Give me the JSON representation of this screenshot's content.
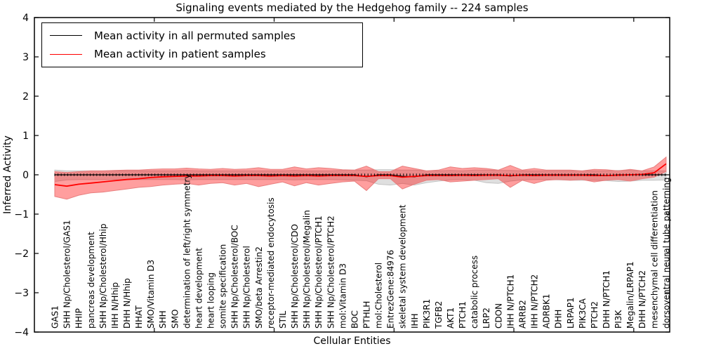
{
  "chart_data": {
    "type": "line",
    "title": "Signaling events mediated by the Hedgehog family -- 224 samples",
    "xlabel": "Cellular Entities",
    "ylabel": "Inferred Activity",
    "ylim": [
      -4,
      4
    ],
    "yticks": [
      -4,
      -3,
      -2,
      -1,
      0,
      1,
      2,
      3,
      4
    ],
    "xticks": [
      10,
      20,
      30,
      40,
      50
    ],
    "grid": false,
    "legend_position": "upper left",
    "categories": [
      "GAS1",
      "SHH Np/Cholesterol/GAS1",
      "HHIP",
      "pancreas development",
      "SHH Np/Cholesterol/Hhip",
      "IHH N/Hhip",
      "DHH N/Hhip",
      "HHAT",
      "SMO/Vitamin D3",
      "SHH",
      "SMO",
      "determination of left/right symmetry",
      "heart development",
      "heart looping",
      "somite specification",
      "SHH Np/Cholesterol/BOC",
      "SHH Np/Cholesterol",
      "SMO/beta Arrestin2",
      "receptor-mediated endocytosis",
      "STIL",
      "SHH Np/Cholesterol/CDO",
      "SHH Np/Cholesterol/Megalin",
      "SHH Np/Cholesterol/PTCH1",
      "SHH Np/Cholesterol/PTCH2",
      "mol:Vitamin D3",
      "BOC",
      "PTHLH",
      "mol:Cholesterol",
      "EntrezGene:84976",
      "skeletal system development",
      "IHH",
      "PIK3R1",
      "TGFB2",
      "AKT1",
      "PTCH1",
      "catabolic process",
      "LRP2",
      "CDON",
      "IHH N/PTCH1",
      "ARRB2",
      "IHH N/PTCH2",
      "ADRBK1",
      "DHH",
      "LRPAP1",
      "PIK3CA",
      "PTCH2",
      "DHH N/PTCH1",
      "PI3K",
      "Megalin/LRPAP1",
      "DHH N/PTCH2",
      "mesenchymal cell differentiation",
      "dorsoventral neural tube patterning"
    ],
    "series": [
      {
        "id": "permuted-mean",
        "name": "Mean activity in all permuted samples",
        "color": "#000000",
        "values": [
          0,
          0,
          0,
          0,
          0,
          0,
          0,
          0,
          0,
          0,
          0,
          0,
          0,
          0,
          0,
          0,
          0,
          0,
          0,
          0,
          0,
          0,
          0,
          0,
          0,
          0,
          -0.05,
          0,
          0,
          -0.04,
          -0.05,
          0,
          0,
          0,
          0,
          0,
          0,
          0,
          -0.03,
          0,
          0,
          0,
          0,
          0,
          0,
          0,
          -0.02,
          0,
          0,
          0,
          0,
          0
        ]
      },
      {
        "id": "patient-mean",
        "name": "Mean activity in patient samples",
        "color": "#ff0000",
        "values": [
          -0.25,
          -0.29,
          -0.24,
          -0.21,
          -0.18,
          -0.15,
          -0.12,
          -0.1,
          -0.07,
          -0.05,
          -0.04,
          -0.03,
          -0.03,
          -0.02,
          -0.02,
          -0.03,
          -0.02,
          -0.02,
          -0.03,
          -0.02,
          -0.03,
          -0.02,
          -0.03,
          -0.02,
          -0.02,
          -0.02,
          -0.04,
          -0.02,
          -0.02,
          -0.06,
          -0.04,
          -0.02,
          -0.02,
          -0.02,
          -0.01,
          -0.02,
          -0.01,
          -0.01,
          -0.02,
          -0.01,
          -0.02,
          -0.01,
          -0.01,
          -0.01,
          -0.01,
          -0.02,
          -0.02,
          -0.01,
          0.0,
          0.01,
          0.05,
          0.28
        ]
      }
    ],
    "bands": [
      {
        "id": "permuted-range",
        "name": "Permuted samples activity spread",
        "color": "#aaaaaa",
        "edge_color": "#c4c4c4",
        "fill_opacity": 0.38,
        "upper": [
          0.12,
          0.1,
          0.1,
          0.1,
          0.1,
          0.1,
          0.1,
          0.1,
          0.1,
          0.1,
          0.1,
          0.11,
          0.1,
          0.1,
          0.1,
          0.1,
          0.1,
          0.1,
          0.1,
          0.1,
          0.11,
          0.1,
          0.1,
          0.1,
          0.11,
          0.12,
          0.12,
          0.13,
          0.13,
          0.12,
          0.12,
          0.1,
          0.1,
          0.11,
          0.1,
          0.12,
          0.12,
          0.11,
          0.11,
          0.1,
          0.1,
          0.1,
          0.1,
          0.1,
          0.1,
          0.1,
          0.1,
          0.11,
          0.11,
          0.1,
          0.1,
          0.1
        ],
        "lower": [
          -0.17,
          -0.13,
          -0.12,
          -0.12,
          -0.12,
          -0.12,
          -0.12,
          -0.12,
          -0.12,
          -0.12,
          -0.12,
          -0.13,
          -0.12,
          -0.12,
          -0.12,
          -0.12,
          -0.12,
          -0.12,
          -0.12,
          -0.12,
          -0.13,
          -0.12,
          -0.12,
          -0.12,
          -0.13,
          -0.14,
          -0.15,
          -0.24,
          -0.26,
          -0.22,
          -0.26,
          -0.2,
          -0.16,
          -0.13,
          -0.12,
          -0.14,
          -0.2,
          -0.22,
          -0.16,
          -0.13,
          -0.12,
          -0.12,
          -0.13,
          -0.14,
          -0.14,
          -0.14,
          -0.15,
          -0.17,
          -0.16,
          -0.14,
          -0.14,
          -0.13
        ]
      },
      {
        "id": "patient-range",
        "name": "Patient samples activity spread",
        "color": "#ff0000",
        "edge_color": "#e87f7f",
        "fill_opacity": 0.38,
        "upper": [
          0.08,
          0.06,
          0.08,
          0.1,
          0.1,
          0.11,
          0.12,
          0.12,
          0.14,
          0.15,
          0.15,
          0.17,
          0.15,
          0.14,
          0.16,
          0.14,
          0.15,
          0.18,
          0.14,
          0.14,
          0.2,
          0.15,
          0.18,
          0.16,
          0.13,
          0.12,
          0.22,
          0.08,
          0.08,
          0.22,
          0.16,
          0.1,
          0.12,
          0.2,
          0.16,
          0.18,
          0.16,
          0.12,
          0.24,
          0.12,
          0.16,
          0.12,
          0.12,
          0.12,
          0.1,
          0.14,
          0.13,
          0.1,
          0.14,
          0.1,
          0.2,
          0.45
        ],
        "lower": [
          -0.55,
          -0.62,
          -0.52,
          -0.46,
          -0.44,
          -0.4,
          -0.36,
          -0.32,
          -0.3,
          -0.26,
          -0.24,
          -0.22,
          -0.26,
          -0.22,
          -0.2,
          -0.26,
          -0.22,
          -0.3,
          -0.24,
          -0.18,
          -0.28,
          -0.2,
          -0.26,
          -0.22,
          -0.18,
          -0.16,
          -0.4,
          -0.1,
          -0.1,
          -0.36,
          -0.24,
          -0.14,
          -0.12,
          -0.18,
          -0.16,
          -0.14,
          -0.12,
          -0.1,
          -0.32,
          -0.14,
          -0.22,
          -0.14,
          -0.12,
          -0.14,
          -0.12,
          -0.18,
          -0.14,
          -0.12,
          -0.16,
          -0.1,
          -0.06,
          0.08
        ]
      }
    ]
  }
}
